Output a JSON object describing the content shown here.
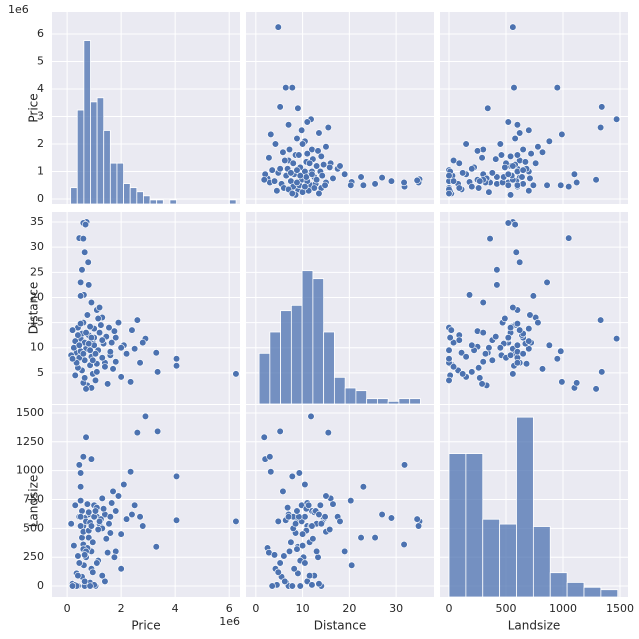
{
  "chart_data": {
    "type": "pairplot",
    "variables": [
      "Price",
      "Distance",
      "Landsize"
    ],
    "offset_text": {
      "Price": "1e6"
    },
    "color": "#4c72b0",
    "grid": true,
    "axes": {
      "Price": {
        "xlim": [
          -0.56,
          6.4
        ],
        "ylim": [
          -0.18,
          6.8
        ],
        "xticks": [
          0,
          2,
          4,
          6
        ],
        "yticks": [
          0,
          1,
          2,
          3,
          4,
          5,
          6
        ]
      },
      "Distance": {
        "xlim": [
          -2.1,
          38.1
        ],
        "ylim": [
          -1.2,
          37
        ],
        "xticks": [
          0,
          10,
          20,
          30
        ],
        "yticks": [
          5,
          10,
          15,
          20,
          25,
          30,
          35
        ]
      },
      "Landsize": {
        "xlim": [
          -79,
          1570
        ],
        "ylim": [
          -95,
          1569
        ],
        "xticks": [
          0,
          500,
          1000,
          1500
        ],
        "yticks": [
          0,
          250,
          500,
          750,
          1000,
          1250,
          1500
        ]
      }
    },
    "histograms": {
      "Price": {
        "bins": [
          0.13,
          0.375,
          0.62,
          0.865,
          1.11,
          1.355,
          1.6,
          1.845,
          2.09,
          2.335,
          2.58,
          2.825,
          3.07,
          3.315,
          3.56,
          3.805,
          4.05,
          4.295,
          4.54,
          4.785,
          5.03,
          5.275,
          5.52,
          5.765,
          6.01,
          6.255
        ],
        "counts": [
          4,
          23,
          40,
          25,
          26,
          18,
          10,
          10,
          5,
          4,
          3,
          2,
          1,
          1,
          0,
          1,
          0,
          0,
          0,
          0,
          0,
          0,
          0,
          0,
          1
        ],
        "ylim": [
          0,
          47
        ]
      },
      "Distance": {
        "bins": [
          0.7,
          3.0,
          5.3,
          7.6,
          9.9,
          12.2,
          14.5,
          16.8,
          19.1,
          21.4,
          23.7,
          26.0,
          28.3,
          30.6,
          32.9,
          35.2
        ],
        "counts": [
          19,
          27,
          35,
          37,
          50,
          47,
          27,
          10,
          6,
          5,
          2,
          2,
          1,
          2,
          2
        ],
        "ylim": [
          0,
          72
        ]
      },
      "Landsize": {
        "bins": [
          0,
          148,
          296,
          444,
          592,
          740,
          888,
          1036,
          1184,
          1332,
          1480
        ],
        "counts": [
          59,
          59,
          32,
          30,
          74,
          29,
          10,
          6,
          4,
          3
        ],
        "ylim": [
          0,
          79
        ]
      }
    },
    "data": {
      "Price": [
        6.25,
        4.05,
        4.05,
        3.35,
        2.9,
        3.3,
        2.6,
        2.35,
        0.72,
        0.6,
        0.68,
        0.45,
        0.6,
        0.78,
        0.65,
        0.55,
        0.5,
        0.8,
        0.62,
        0.5,
        0.9,
        1.1,
        1.3,
        0.4,
        0.2,
        1.8,
        2.1,
        2.5,
        2.8,
        1.6,
        0.35,
        0.7,
        0.95,
        1.2,
        1.4,
        0.85,
        0.55,
        0.3,
        1.05,
        0.75,
        1.5,
        2.0,
        1.7,
        0.65,
        0.9,
        1.15,
        1.35,
        0.5,
        0.8,
        1.0,
        1.25,
        0.6,
        0.4,
        1.8,
        2.2,
        0.45,
        0.7,
        0.95,
        1.1,
        0.25,
        1.45,
        1.65,
        0.55,
        0.85,
        1.0,
        0.35,
        0.75,
        1.2,
        1.9,
        2.4,
        0.9,
        0.6,
        0.7,
        0.5,
        1.3,
        0.65,
        1.0,
        0.4,
        0.15,
        1.6,
        0.8,
        1.1,
        0.95,
        0.3,
        1.75,
        2.0,
        0.6,
        0.85,
        1.4,
        0.5,
        1.15,
        0.7,
        0.45,
        1.05,
        0.9,
        0.2,
        1.3,
        0.65,
        2.7,
        1.55
      ],
      "Distance": [
        4.8,
        7.8,
        6.4,
        5.2,
        11.8,
        9.0,
        15.5,
        3.2,
        35.0,
        34.8,
        34.5,
        31.8,
        31.7,
        27.0,
        29.0,
        25.5,
        23.0,
        22.5,
        20.5,
        20.3,
        19.0,
        17.5,
        16.0,
        14.0,
        13.5,
        12.0,
        10.5,
        9.8,
        11.0,
        8.5,
        9.0,
        10.2,
        11.5,
        13.0,
        7.0,
        6.5,
        5.5,
        4.5,
        3.5,
        2.5,
        2.8,
        4.2,
        5.8,
        7.5,
        8.2,
        9.5,
        10.8,
        11.8,
        12.5,
        13.8,
        14.5,
        15.0,
        6.0,
        7.2,
        8.8,
        8.0,
        9.8,
        4.8,
        6.8,
        10.0,
        12.2,
        11.0,
        12.8,
        14.2,
        10.5,
        7.0,
        16.5,
        18.0,
        15.0,
        13.5,
        2.0,
        3.0,
        1.8,
        9.3,
        8.0,
        11.0,
        12.0,
        12.5,
        8.5,
        9.2,
        10.8,
        5.2,
        7.5,
        11.3,
        13.3,
        10.0,
        8.8,
        9.5,
        6.2,
        14.8,
        15.8,
        13.0,
        10.5,
        8.8,
        12.0,
        7.8,
        11.5,
        4.0,
        7.0,
        14.0
      ],
      "Landsize": [
        560,
        950,
        570,
        1340,
        1470,
        340,
        1330,
        990,
        560,
        520,
        580,
        1050,
        360,
        620,
        590,
        420,
        860,
        420,
        180,
        740,
        300,
        600,
        760,
        0,
        20,
        650,
        880,
        700,
        520,
        460,
        110,
        250,
        380,
        540,
        620,
        30,
        80,
        10,
        0,
        330,
        290,
        150,
        820,
        0,
        150,
        220,
        670,
        520,
        640,
        700,
        580,
        470,
        260,
        300,
        580,
        600,
        560,
        120,
        680,
        350,
        410,
        720,
        650,
        550,
        600,
        0,
        710,
        560,
        780,
        620,
        1100,
        1120,
        1290,
        980,
        500,
        40,
        10,
        90,
        540,
        600,
        480,
        200,
        380,
        700,
        250,
        450,
        320,
        0,
        40,
        600,
        490,
        300,
        200,
        650,
        520,
        0,
        90,
        270,
        600,
        540
      ]
    }
  }
}
